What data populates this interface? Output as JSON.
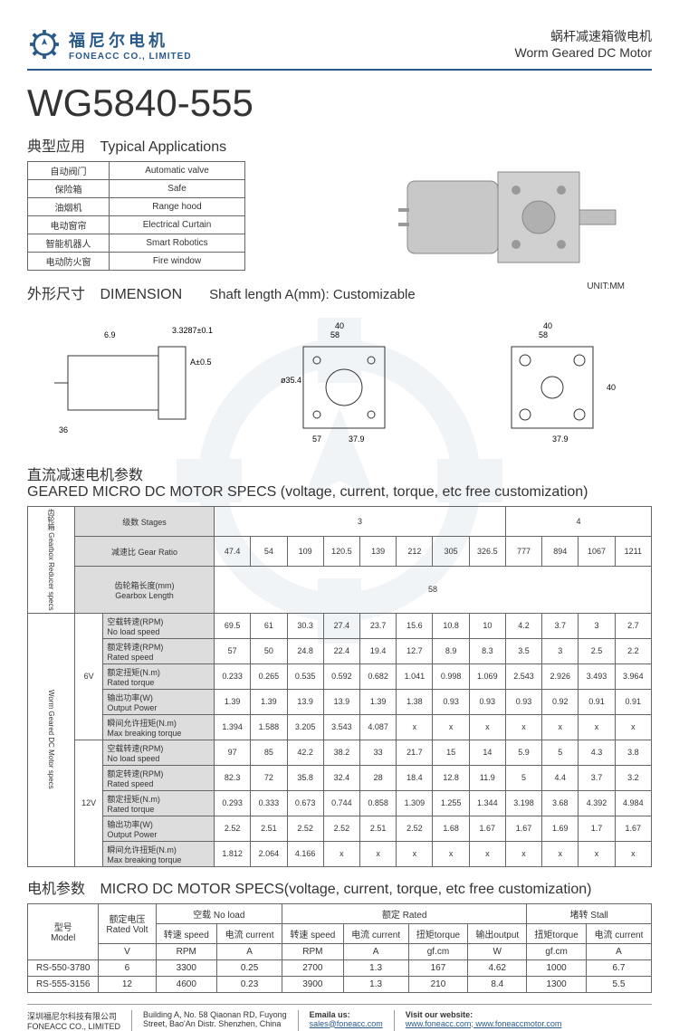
{
  "header": {
    "logo_cn": "福尼尔电机",
    "logo_en": "FONEACC CO., LIMITED",
    "title_cn": "蜗杆减速箱微电机",
    "title_en": "Worm Geared DC Motor"
  },
  "product_title": "WG5840-555",
  "sections": {
    "apps_cn": "典型应用",
    "apps_en": "Typical Applications",
    "dim_cn": "外形尺寸",
    "dim_en": "DIMENSION",
    "shaft": "Shaft length A(mm): Customizable",
    "unit": "UNIT:MM",
    "geared_cn": "直流减速电机参数",
    "geared_en": "GEARED MICRO DC MOTOR SPECS (voltage, current, torque, etc free customization)",
    "motor_cn": "电机参数",
    "motor_en": "MICRO DC MOTOR SPECS(voltage, current, torque, etc free customization)"
  },
  "apps": [
    {
      "cn": "自动阀门",
      "en": "Automatic valve"
    },
    {
      "cn": "保险箱",
      "en": "Safe"
    },
    {
      "cn": "油烟机",
      "en": "Range hood"
    },
    {
      "cn": "电动窗帘",
      "en": "Electrical Curtain"
    },
    {
      "cn": "智能机器人",
      "en": "Smart Robotics"
    },
    {
      "cn": "电动防火窗",
      "en": "Fire window"
    }
  ],
  "geared": {
    "vert1": "齿轮箱 Gearbox Reducer specs",
    "vert2": "Worm Geared DC Motor specs",
    "stages_cn": "级数",
    "stages_en": "Stages",
    "stage_vals": [
      "3",
      "4"
    ],
    "ratio_cn": "减速比",
    "ratio_en": "Gear Ratio",
    "ratios": [
      "47.4",
      "54",
      "109",
      "120.5",
      "139",
      "212",
      "305",
      "326.5",
      "777",
      "894",
      "1067",
      "1211"
    ],
    "gblen_cn": "齿轮箱长度(mm)",
    "gblen_en": "Gearbox Length",
    "gblen": "58",
    "rows": [
      {
        "cn": "空载转速(RPM)",
        "en": "No load speed"
      },
      {
        "cn": "额定转速(RPM)",
        "en": "Rated speed"
      },
      {
        "cn": "额定扭矩(N.m)",
        "en": "Rated torque"
      },
      {
        "cn": "输出功率(W)",
        "en": "Output Power"
      },
      {
        "cn": "瞬间允许扭矩(N.m)",
        "en": "Max breaking torque"
      }
    ],
    "v6": "6V",
    "v12": "12V",
    "d6": [
      [
        "69.5",
        "61",
        "30.3",
        "27.4",
        "23.7",
        "15.6",
        "10.8",
        "10",
        "4.2",
        "3.7",
        "3",
        "2.7"
      ],
      [
        "57",
        "50",
        "24.8",
        "22.4",
        "19.4",
        "12.7",
        "8.9",
        "8.3",
        "3.5",
        "3",
        "2.5",
        "2.2"
      ],
      [
        "0.233",
        "0.265",
        "0.535",
        "0.592",
        "0.682",
        "1.041",
        "0.998",
        "1.069",
        "2.543",
        "2.926",
        "3.493",
        "3.964"
      ],
      [
        "1.39",
        "1.39",
        "13.9",
        "13.9",
        "1.39",
        "1.38",
        "0.93",
        "0.93",
        "0.93",
        "0.92",
        "0.91",
        "0.91"
      ],
      [
        "1.394",
        "1.588",
        "3.205",
        "3.543",
        "4.087",
        "x",
        "x",
        "x",
        "x",
        "x",
        "x",
        "x"
      ]
    ],
    "d12": [
      [
        "97",
        "85",
        "42.2",
        "38.2",
        "33",
        "21.7",
        "15",
        "14",
        "5.9",
        "5",
        "4.3",
        "3.8"
      ],
      [
        "82.3",
        "72",
        "35.8",
        "32.4",
        "28",
        "18.4",
        "12.8",
        "11.9",
        "5",
        "4.4",
        "3.7",
        "3.2"
      ],
      [
        "0.293",
        "0.333",
        "0.673",
        "0.744",
        "0.858",
        "1.309",
        "1.255",
        "1.344",
        "3.198",
        "3.68",
        "4.392",
        "4.984"
      ],
      [
        "2.52",
        "2.51",
        "2.52",
        "2.52",
        "2.51",
        "2.52",
        "1.68",
        "1.67",
        "1.67",
        "1.69",
        "1.7",
        "1.67"
      ],
      [
        "1.812",
        "2.064",
        "4.166",
        "x",
        "x",
        "x",
        "x",
        "x",
        "x",
        "x",
        "x",
        "x"
      ]
    ]
  },
  "motor": {
    "model_cn": "型号",
    "model_en": "Model",
    "volt_cn": "额定电压",
    "volt_en": "Rated Volt",
    "noload_cn": "空载",
    "noload_en": "No load",
    "rated_cn": "额定",
    "rated_en": "Rated",
    "stall_cn": "堵转",
    "stall_en": "Stall",
    "speed_cn": "转速",
    "speed_en": "speed",
    "current_cn": "电流",
    "current_en": "current",
    "torque_cn": "扭矩",
    "torque_en": "torque",
    "output_cn": "输出",
    "output_en": "output",
    "units": [
      "V",
      "RPM",
      "A",
      "RPM",
      "A",
      "gf.cm",
      "W",
      "gf.cm",
      "A"
    ],
    "rows": [
      [
        "RS-550-3780",
        "6",
        "3300",
        "0.25",
        "2700",
        "1.3",
        "167",
        "4.62",
        "1000",
        "6.7"
      ],
      [
        "RS-555-3156",
        "12",
        "4600",
        "0.23",
        "3900",
        "1.3",
        "210",
        "8.4",
        "1300",
        "5.5"
      ]
    ]
  },
  "footer": {
    "company_cn": "深圳福尼尔科技有限公司",
    "company_en": "FONEACC CO., LIMITED",
    "addr1": "Building A, No. 58 Qiaonan RD, Fuyong",
    "addr2": "Street, Bao'An Distr. Shenzhen, China",
    "email_label": "Emaila us:",
    "email": "sales@foneacc.com",
    "web_label": "Visit our website:",
    "web": "www.foneacc.com; www.foneaccmotor.com"
  }
}
